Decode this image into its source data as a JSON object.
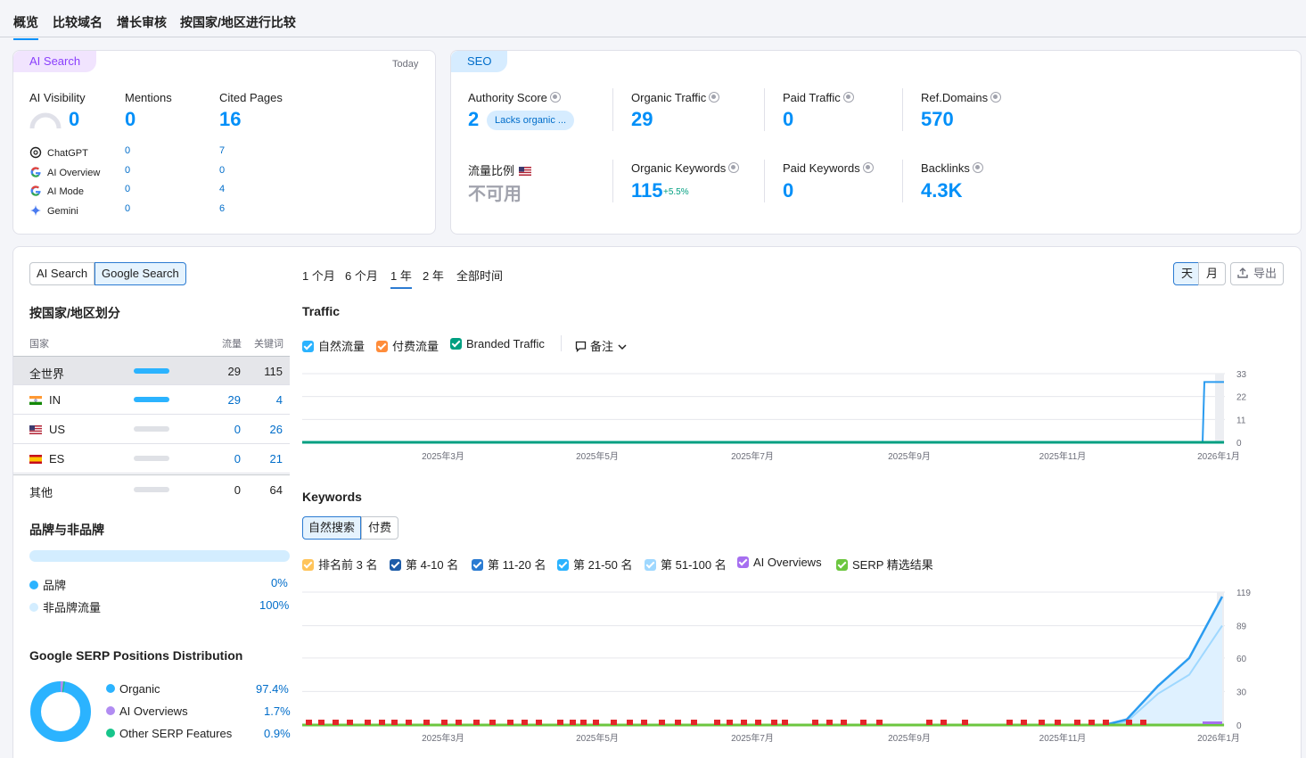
{
  "top_tabs": [
    "概览",
    "比较域名",
    "增长审核",
    "按国家/地区进行比较"
  ],
  "ai_card": {
    "tag": "AI Search",
    "date": "Today",
    "metrics": [
      {
        "label": "AI Visibility",
        "value": "0"
      },
      {
        "label": "Mentions",
        "value": "0"
      },
      {
        "label": "Cited Pages",
        "value": "16"
      }
    ],
    "sources": [
      {
        "name": "ChatGPT",
        "icon": "chatgpt-icon",
        "mentions": "0",
        "cited": "7"
      },
      {
        "name": "AI Overview",
        "icon": "google-icon",
        "mentions": "0",
        "cited": "0"
      },
      {
        "name": "AI Mode",
        "icon": "google-icon",
        "mentions": "0",
        "cited": "4"
      },
      {
        "name": "Gemini",
        "icon": "gemini-icon",
        "mentions": "0",
        "cited": "6"
      }
    ]
  },
  "seo_card": {
    "tag": "SEO",
    "authority_label": "Authority Score",
    "authority_value": "2",
    "authority_badge": "Lacks organic ...",
    "organic_traffic_label": "Organic Traffic",
    "organic_traffic_value": "29",
    "paid_traffic_label": "Paid Traffic",
    "paid_traffic_value": "0",
    "ref_domains_label": "Ref.Domains",
    "ref_domains_value": "570",
    "traffic_share_label": "流量比例",
    "traffic_share_value": "不可用",
    "organic_keywords_label": "Organic Keywords",
    "organic_keywords_value": "115",
    "organic_keywords_delta": "+5.5%",
    "paid_keywords_label": "Paid Keywords",
    "paid_keywords_value": "0",
    "backlinks_label": "Backlinks",
    "backlinks_value": "4.3K"
  },
  "left_panel": {
    "source_toggle": [
      "AI Search",
      "Google Search"
    ],
    "country_title": "按国家/地区划分",
    "col_country": "国家",
    "col_traffic": "流量",
    "col_keywords": "关键词",
    "rows": [
      {
        "name": "全世界",
        "traffic": "29",
        "keywords": "115",
        "bar": 1
      },
      {
        "name": "IN",
        "traffic": "29",
        "keywords": "4",
        "bar": 1
      },
      {
        "name": "US",
        "traffic": "0",
        "keywords": "26",
        "bar": 0
      },
      {
        "name": "ES",
        "traffic": "0",
        "keywords": "21",
        "bar": 0
      },
      {
        "name": "其他",
        "traffic": "0",
        "keywords": "64",
        "bar": 0
      }
    ],
    "brand_title": "品牌与非品牌",
    "brand_label": "品牌",
    "brand_value": "0%",
    "nonbrand_label": "非品牌流量",
    "nonbrand_value": "100%",
    "serp_title": "Google SERP Positions Distribution",
    "serp_items": [
      {
        "label": "Organic",
        "value": "97.4%",
        "color": "#2bb3ff"
      },
      {
        "label": "AI Overviews",
        "value": "1.7%",
        "color": "#b18cf2"
      },
      {
        "label": "Other SERP Features",
        "value": "0.9%",
        "color": "#17c58b"
      }
    ]
  },
  "periods": [
    "1 个月",
    "6 个月",
    "1 年",
    "2 年",
    "全部时间"
  ],
  "granularity": [
    "天",
    "月"
  ],
  "export_label": "导出",
  "traffic_chart": {
    "title": "Traffic",
    "legend": [
      {
        "label": "自然流量",
        "color": "#2bb3ff"
      },
      {
        "label": "付费流量",
        "color": "#ff8c3a"
      },
      {
        "label": "Branded Traffic",
        "color": "#009f81"
      }
    ],
    "notes_label": "备注"
  },
  "keywords_chart": {
    "title": "Keywords",
    "toggle": [
      "自然搜索",
      "付费"
    ],
    "legend": [
      {
        "label": "排名前 3 名",
        "color": "#ffc45a"
      },
      {
        "label": "第 4-10 名",
        "color": "#1d5ca8"
      },
      {
        "label": "第 11-20 名",
        "color": "#2b7bd2"
      },
      {
        "label": "第 21-50 名",
        "color": "#2bb3ff"
      },
      {
        "label": "第 51-100 名",
        "color": "#9fd8ff"
      },
      {
        "label": "AI Overviews",
        "color": "#a66ff0"
      },
      {
        "label": "SERP 精选结果",
        "color": "#6cc63f"
      }
    ]
  },
  "chart_data": [
    {
      "type": "line",
      "title": "Traffic",
      "x_ticks": [
        "2025年3月",
        "2025年5月",
        "2025年7月",
        "2025年9月",
        "2025年11月",
        "2026年1月"
      ],
      "y_ticks": [
        0,
        11,
        22,
        33
      ],
      "ylim": [
        0,
        33
      ],
      "series": [
        {
          "name": "自然流量",
          "values": [
            0,
            0,
            0,
            0,
            0,
            0,
            29
          ]
        },
        {
          "name": "Branded Traffic",
          "values": [
            0,
            0,
            0,
            0,
            0,
            0,
            0
          ]
        }
      ]
    },
    {
      "type": "area",
      "title": "Keywords",
      "x_ticks": [
        "2025年3月",
        "2025年5月",
        "2025年7月",
        "2025年9月",
        "2025年11月",
        "2026年1月"
      ],
      "y_ticks": [
        0,
        30,
        60,
        89,
        119
      ],
      "ylim": [
        0,
        119
      ],
      "series": [
        {
          "name": "第 21-50 名",
          "values": [
            0,
            0,
            0,
            0,
            0,
            0,
            0,
            5,
            35,
            60,
            115
          ]
        },
        {
          "name": "第 51-100 名",
          "values": [
            0,
            0,
            0,
            0,
            0,
            0,
            0,
            3,
            28,
            45,
            89
          ]
        }
      ]
    }
  ]
}
